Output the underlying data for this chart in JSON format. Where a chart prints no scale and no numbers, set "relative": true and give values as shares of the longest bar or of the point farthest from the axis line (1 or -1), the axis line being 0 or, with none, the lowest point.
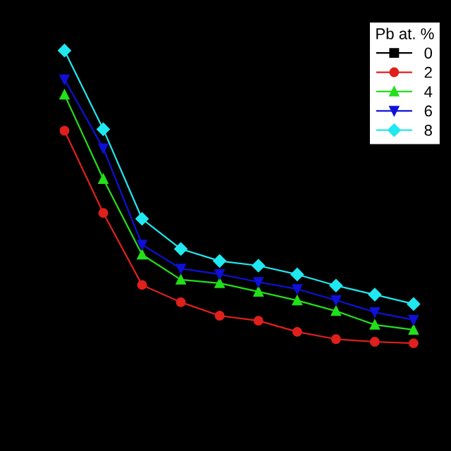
{
  "chart_data": {
    "type": "line",
    "relative": true,
    "legend_title": "Pb at. %",
    "legend": "top right",
    "line_style": "solid",
    "categories": [
      null,
      null,
      null,
      null,
      null,
      null,
      null,
      null,
      null,
      null
    ],
    "series": [
      {
        "name": "0",
        "color": "#000000",
        "marker": "square",
        "values": [
          null,
          null,
          null,
          null,
          null,
          null,
          null,
          null,
          null,
          null
        ]
      },
      {
        "name": "2",
        "color": "#e0201c",
        "marker": "circle",
        "values": [
          0.726,
          0.445,
          0.199,
          0.14,
          0.094,
          0.077,
          0.039,
          0.014,
          0.005,
          0
        ]
      },
      {
        "name": "4",
        "color": "#22e01a",
        "marker": "triangle",
        "values": [
          0.849,
          0.561,
          0.303,
          0.217,
          0.205,
          0.176,
          0.146,
          0.11,
          0.063,
          0.046
        ]
      },
      {
        "name": "6",
        "color": "#1010d8",
        "marker": "triangle_down",
        "values": [
          0.901,
          0.666,
          0.337,
          0.255,
          0.236,
          0.209,
          0.185,
          0.147,
          0.106,
          0.08
        ]
      },
      {
        "name": "8",
        "color": "#20e8f0",
        "marker": "diamond",
        "values": [
          1,
          0.731,
          0.425,
          0.322,
          0.281,
          0.265,
          0.235,
          0.197,
          0.166,
          0.134
        ]
      }
    ]
  }
}
